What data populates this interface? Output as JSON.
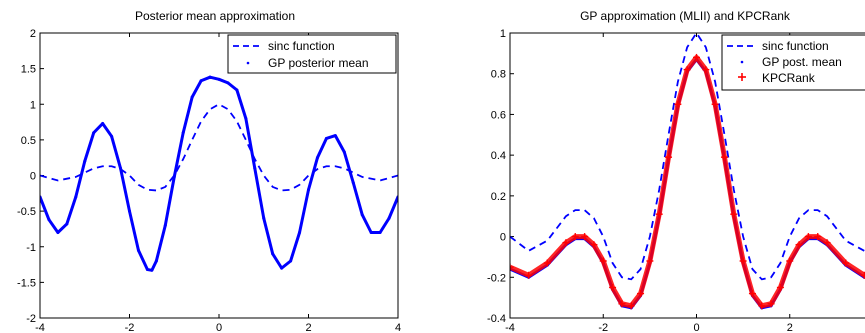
{
  "chart_data": [
    {
      "type": "line",
      "title": "Posterior mean approximation",
      "xlim": [
        -4,
        4
      ],
      "ylim": [
        -2,
        2
      ],
      "xticks": [
        -4,
        -2,
        0,
        2,
        4
      ],
      "yticks": [
        -2,
        -1.5,
        -1,
        -0.5,
        0,
        0.5,
        1,
        1.5,
        2
      ],
      "legend_position": "top-right",
      "series": [
        {
          "name": "sinc function",
          "style": "dashed",
          "color": "#0000ff",
          "x": [
            -4,
            -3.6,
            -3.2,
            -2.8,
            -2.6,
            -2.4,
            -2.2,
            -2,
            -1.8,
            -1.6,
            -1.4,
            -1.2,
            -1,
            -0.8,
            -0.6,
            -0.4,
            -0.2,
            0,
            0.2,
            0.4,
            0.6,
            0.8,
            1,
            1.2,
            1.4,
            1.6,
            1.8,
            2,
            2.2,
            2.4,
            2.6,
            2.8,
            3.2,
            3.6,
            4
          ],
          "y": [
            0,
            -0.07,
            -0.02,
            0.1,
            0.13,
            0.13,
            0.09,
            0,
            -0.13,
            -0.2,
            -0.21,
            -0.16,
            0,
            0.23,
            0.5,
            0.76,
            0.93,
            1,
            0.93,
            0.76,
            0.5,
            0.23,
            0,
            -0.16,
            -0.21,
            -0.2,
            -0.13,
            0,
            0.09,
            0.13,
            0.13,
            0.1,
            -0.02,
            -0.07,
            0
          ]
        },
        {
          "name": "GP posterior mean",
          "style": "dotted-markers",
          "color": "#0000ff",
          "x": [
            -4,
            -3.8,
            -3.6,
            -3.4,
            -3.2,
            -3,
            -2.8,
            -2.6,
            -2.4,
            -2.2,
            -2,
            -1.8,
            -1.6,
            -1.5,
            -1.4,
            -1.2,
            -1,
            -0.8,
            -0.6,
            -0.4,
            -0.2,
            0,
            0.2,
            0.4,
            0.6,
            0.8,
            1,
            1.2,
            1.4,
            1.6,
            1.8,
            2,
            2.2,
            2.4,
            2.6,
            2.8,
            3,
            3.2,
            3.4,
            3.6,
            3.8,
            4
          ],
          "y": [
            -0.3,
            -0.62,
            -0.8,
            -0.68,
            -0.3,
            0.2,
            0.6,
            0.73,
            0.55,
            0.1,
            -0.5,
            -1.05,
            -1.32,
            -1.33,
            -1.2,
            -0.7,
            -0.02,
            0.6,
            1.1,
            1.33,
            1.38,
            1.35,
            1.3,
            1.2,
            0.8,
            0.1,
            -0.6,
            -1.1,
            -1.3,
            -1.2,
            -0.8,
            -0.2,
            0.25,
            0.52,
            0.56,
            0.33,
            -0.1,
            -0.55,
            -0.8,
            -0.8,
            -0.6,
            -0.3
          ]
        }
      ]
    },
    {
      "type": "line",
      "title": "GP approximation (MLII) and KPCRank",
      "xlim": [
        -4,
        4
      ],
      "ylim": [
        -0.4,
        1
      ],
      "xticks": [
        -4,
        -2,
        0,
        2
      ],
      "yticks": [
        -0.4,
        -0.2,
        0,
        0.2,
        0.4,
        0.6,
        0.8,
        1
      ],
      "legend_position": "top-right",
      "series": [
        {
          "name": "sinc function",
          "style": "dashed",
          "color": "#0000ff",
          "x": [
            -4,
            -3.6,
            -3.2,
            -2.8,
            -2.6,
            -2.4,
            -2.2,
            -2,
            -1.8,
            -1.6,
            -1.4,
            -1.2,
            -1,
            -0.8,
            -0.6,
            -0.4,
            -0.2,
            0,
            0.2,
            0.4,
            0.6,
            0.8,
            1,
            1.2,
            1.4,
            1.6,
            1.8,
            2,
            2.2,
            2.4,
            2.6,
            2.8,
            3.2,
            3.6,
            4
          ],
          "y": [
            0,
            -0.07,
            -0.02,
            0.1,
            0.13,
            0.13,
            0.09,
            0,
            -0.13,
            -0.2,
            -0.21,
            -0.16,
            0,
            0.23,
            0.5,
            0.76,
            0.93,
            1,
            0.93,
            0.76,
            0.5,
            0.23,
            0,
            -0.16,
            -0.21,
            -0.2,
            -0.13,
            0,
            0.09,
            0.13,
            0.13,
            0.1,
            -0.02,
            -0.07,
            0
          ]
        },
        {
          "name": "GP post. mean",
          "style": "dotted-markers",
          "color": "#0000ff",
          "x": [
            -4,
            -3.6,
            -3.2,
            -2.8,
            -2.6,
            -2.4,
            -2.2,
            -2,
            -1.8,
            -1.6,
            -1.4,
            -1.2,
            -1,
            -0.8,
            -0.6,
            -0.4,
            -0.2,
            0,
            0.2,
            0.4,
            0.6,
            0.8,
            1,
            1.2,
            1.4,
            1.6,
            1.8,
            2,
            2.2,
            2.4,
            2.6,
            2.8,
            3.2,
            3.6,
            4
          ],
          "y": [
            -0.16,
            -0.2,
            -0.14,
            -0.04,
            -0.01,
            -0.01,
            -0.05,
            -0.13,
            -0.26,
            -0.34,
            -0.35,
            -0.29,
            -0.13,
            0.1,
            0.38,
            0.64,
            0.81,
            0.87,
            0.81,
            0.64,
            0.38,
            0.1,
            -0.13,
            -0.29,
            -0.35,
            -0.34,
            -0.26,
            -0.13,
            -0.05,
            -0.01,
            -0.01,
            -0.04,
            -0.14,
            -0.2,
            -0.16
          ]
        },
        {
          "name": "KPCRank",
          "style": "plus-markers",
          "color": "#ff0000",
          "x": [
            -4,
            -3.6,
            -3.2,
            -2.8,
            -2.6,
            -2.4,
            -2.2,
            -2,
            -1.8,
            -1.6,
            -1.4,
            -1.2,
            -1,
            -0.8,
            -0.6,
            -0.4,
            -0.2,
            0,
            0.2,
            0.4,
            0.6,
            0.8,
            1,
            1.2,
            1.4,
            1.6,
            1.8,
            2,
            2.2,
            2.4,
            2.6,
            2.8,
            3.2,
            3.6,
            4
          ],
          "y": [
            -0.15,
            -0.19,
            -0.13,
            -0.03,
            0,
            0,
            -0.04,
            -0.12,
            -0.25,
            -0.33,
            -0.34,
            -0.28,
            -0.12,
            0.11,
            0.39,
            0.65,
            0.82,
            0.88,
            0.82,
            0.65,
            0.39,
            0.11,
            -0.12,
            -0.28,
            -0.34,
            -0.33,
            -0.25,
            -0.12,
            -0.04,
            0,
            0,
            -0.03,
            -0.13,
            -0.19,
            -0.15
          ]
        }
      ]
    }
  ]
}
